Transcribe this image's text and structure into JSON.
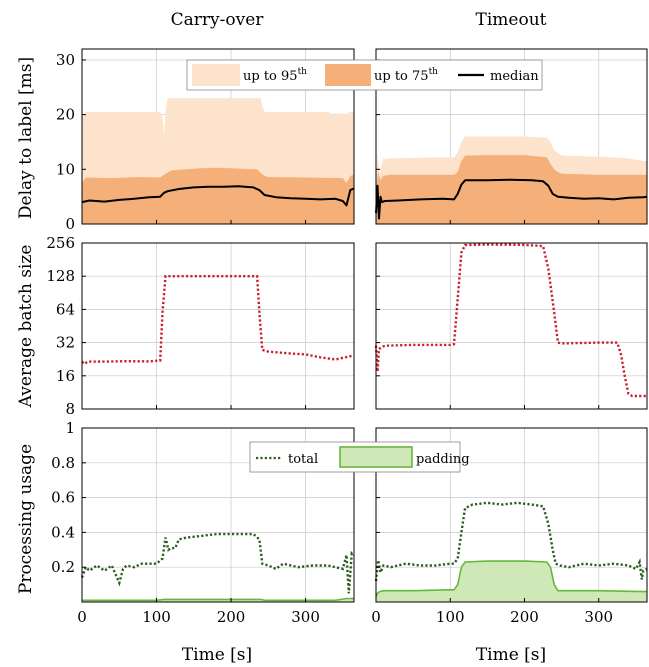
{
  "figure": {
    "col_titles": [
      "Carry-over",
      "Timeout"
    ],
    "row_ylabels": [
      "Delay to label [ms]",
      "Average batch size",
      "Processing usage"
    ],
    "xlabel": "Time [s]",
    "legend_delay": {
      "p95": "up to 95",
      "p75": "up to 75",
      "sup": "th",
      "median": "median"
    },
    "legend_usage": {
      "total": "total",
      "padding": "padding"
    }
  },
  "colors": {
    "p95": "#fde2cc",
    "p75": "#f5b07a",
    "median": "#000000",
    "batch": "#cc1f2b",
    "total": "#2b5d1e",
    "padding_fill": "#cfe8b8",
    "padding_line": "#66b83a",
    "grid": "#c8c8c8"
  },
  "chart_data": [
    {
      "type": "area",
      "panel": "delay-carry-over",
      "title": "Carry-over",
      "ylabel": "Delay to label [ms]",
      "xlim": [
        0,
        365
      ],
      "ylim": [
        0,
        32
      ],
      "xticks": [
        0,
        100,
        200,
        300
      ],
      "yticks": [
        0,
        10,
        20,
        30
      ],
      "grid": true,
      "legend": "top",
      "series": [
        {
          "name": "up to 95th",
          "kind": "area",
          "x": [
            0,
            5,
            105,
            108,
            110,
            112,
            115,
            240,
            242,
            245,
            250,
            330,
            340,
            345,
            352,
            360,
            365
          ],
          "values": [
            19.5,
            20.5,
            20.5,
            19.5,
            16.0,
            20.5,
            23.0,
            23.0,
            21.5,
            20.5,
            20.5,
            20.5,
            19.8,
            20.3,
            20.0,
            20.5,
            20.5
          ]
        },
        {
          "name": "up to 75th",
          "kind": "area",
          "x": [
            0,
            5,
            40,
            80,
            105,
            110,
            120,
            140,
            160,
            180,
            200,
            235,
            240,
            245,
            250,
            300,
            350,
            355,
            360,
            365
          ],
          "values": [
            7.5,
            8.5,
            8.4,
            8.6,
            8.5,
            9.0,
            9.8,
            10.0,
            10.2,
            10.3,
            10.2,
            10.0,
            9.3,
            8.8,
            8.6,
            8.5,
            8.4,
            7.5,
            8.8,
            9.0
          ]
        },
        {
          "name": "median",
          "kind": "line",
          "x": [
            0,
            10,
            30,
            50,
            70,
            90,
            105,
            110,
            115,
            130,
            150,
            170,
            190,
            210,
            230,
            238,
            245,
            260,
            280,
            300,
            320,
            340,
            350,
            355,
            360,
            365
          ],
          "values": [
            4.0,
            4.3,
            4.1,
            4.4,
            4.6,
            4.9,
            5.0,
            5.7,
            6.0,
            6.4,
            6.7,
            6.8,
            6.8,
            6.9,
            6.7,
            6.2,
            5.3,
            4.9,
            4.7,
            4.6,
            4.5,
            4.6,
            4.2,
            3.4,
            6.2,
            6.5
          ]
        }
      ]
    },
    {
      "type": "area",
      "panel": "delay-timeout",
      "title": "Timeout",
      "xlim": [
        0,
        365
      ],
      "ylim": [
        0,
        32
      ],
      "xticks": [
        0,
        100,
        200,
        300
      ],
      "yticks": [
        0,
        10,
        20,
        30
      ],
      "grid": true,
      "series": [
        {
          "name": "up to 95th",
          "kind": "area",
          "x": [
            0,
            2,
            5,
            8,
            10,
            12,
            15,
            105,
            110,
            115,
            120,
            200,
            230,
            235,
            240,
            245,
            250,
            300,
            340,
            360,
            365
          ],
          "values": [
            6.0,
            13.0,
            9.0,
            11.0,
            12.0,
            11.8,
            12.0,
            12.2,
            13.0,
            15.0,
            16.0,
            16.0,
            15.8,
            15.0,
            13.5,
            13.0,
            12.5,
            12.3,
            12.0,
            11.5,
            11.5
          ]
        },
        {
          "name": "up to 75th",
          "kind": "area",
          "x": [
            0,
            3,
            6,
            10,
            20,
            105,
            110,
            115,
            120,
            150,
            200,
            230,
            235,
            240,
            245,
            250,
            300,
            360,
            365
          ],
          "values": [
            6.0,
            9.5,
            8.0,
            8.8,
            9.0,
            9.0,
            9.5,
            11.5,
            12.5,
            12.6,
            12.6,
            12.2,
            11.0,
            10.0,
            9.5,
            9.2,
            9.0,
            9.0,
            9.0
          ]
        },
        {
          "name": "median",
          "kind": "line",
          "x": [
            0,
            2,
            4,
            6,
            8,
            12,
            30,
            60,
            90,
            105,
            110,
            115,
            120,
            150,
            180,
            210,
            225,
            232,
            238,
            245,
            260,
            280,
            300,
            320,
            340,
            360,
            365
          ],
          "values": [
            2.0,
            7.0,
            1.0,
            5.0,
            4.0,
            4.2,
            4.3,
            4.5,
            4.6,
            4.5,
            5.5,
            7.2,
            8.0,
            8.0,
            8.1,
            8.0,
            7.8,
            7.0,
            5.5,
            5.0,
            4.8,
            4.6,
            4.7,
            4.5,
            4.8,
            4.9,
            5.0
          ]
        }
      ]
    },
    {
      "type": "line",
      "panel": "batch-carry-over",
      "ylabel": "Average batch size",
      "xlim": [
        0,
        365
      ],
      "ylim": [
        8,
        256
      ],
      "log_scale_y": true,
      "xticks": [
        0,
        100,
        200,
        300
      ],
      "yticks": [
        8,
        16,
        32,
        64,
        128,
        256
      ],
      "grid": true,
      "series": [
        {
          "kind": "dotted",
          "x": [
            0,
            3,
            8,
            30,
            60,
            90,
            105,
            108,
            112,
            150,
            200,
            235,
            238,
            242,
            250,
            280,
            300,
            320,
            340,
            365
          ],
          "values": [
            21.5,
            20.5,
            21.5,
            21.5,
            21.7,
            21.6,
            22.0,
            60.0,
            128.0,
            128.0,
            128.0,
            128.0,
            60.0,
            27.5,
            26.5,
            25.5,
            25.0,
            23.5,
            22.5,
            24.5
          ]
        }
      ]
    },
    {
      "type": "line",
      "panel": "batch-timeout",
      "xlim": [
        0,
        365
      ],
      "ylim": [
        8,
        256
      ],
      "log_scale_y": true,
      "xticks": [
        0,
        100,
        200,
        300
      ],
      "yticks": [
        8,
        16,
        32,
        64,
        128,
        256
      ],
      "grid": true,
      "series": [
        {
          "kind": "dotted",
          "x": [
            0,
            2,
            4,
            7,
            12,
            50,
            100,
            105,
            110,
            115,
            120,
            150,
            200,
            225,
            232,
            240,
            245,
            250,
            300,
            325,
            330,
            335,
            340,
            345,
            365
          ],
          "values": [
            30.0,
            17.5,
            28.0,
            29.0,
            30.0,
            30.5,
            30.5,
            31.0,
            80.0,
            210.0,
            245.0,
            248.0,
            246.0,
            240.0,
            150.0,
            60.0,
            32.0,
            31.5,
            32.0,
            32.0,
            25.0,
            16.0,
            11.0,
            10.5,
            10.5
          ]
        }
      ]
    },
    {
      "type": "area",
      "panel": "usage-carry-over",
      "ylabel": "Processing usage",
      "xlabel": "Time [s]",
      "xlim": [
        0,
        365
      ],
      "ylim": [
        0,
        1
      ],
      "xticks": [
        0,
        100,
        200,
        300
      ],
      "yticks": [
        0.2,
        0.4,
        0.6,
        0.8,
        1
      ],
      "grid": true,
      "legend": "top",
      "series": [
        {
          "name": "total",
          "kind": "dotted",
          "x": [
            0,
            5,
            10,
            20,
            30,
            40,
            45,
            50,
            55,
            60,
            70,
            80,
            100,
            108,
            112,
            116,
            120,
            125,
            130,
            140,
            160,
            180,
            200,
            215,
            230,
            238,
            242,
            250,
            260,
            270,
            290,
            310,
            330,
            350,
            355,
            358,
            362,
            365
          ],
          "values": [
            0.14,
            0.2,
            0.18,
            0.21,
            0.18,
            0.21,
            0.16,
            0.11,
            0.19,
            0.21,
            0.2,
            0.22,
            0.22,
            0.25,
            0.37,
            0.3,
            0.31,
            0.31,
            0.36,
            0.37,
            0.38,
            0.39,
            0.39,
            0.39,
            0.39,
            0.36,
            0.22,
            0.21,
            0.19,
            0.22,
            0.2,
            0.21,
            0.21,
            0.19,
            0.27,
            0.05,
            0.28,
            0.27
          ]
        },
        {
          "name": "padding",
          "kind": "area",
          "x": [
            0,
            100,
            110,
            240,
            245,
            340,
            355,
            365
          ],
          "values": [
            0.01,
            0.01,
            0.015,
            0.015,
            0.01,
            0.01,
            0.02,
            0.02
          ]
        }
      ]
    },
    {
      "type": "area",
      "panel": "usage-timeout",
      "xlabel": "Time [s]",
      "xlim": [
        0,
        365
      ],
      "ylim": [
        0,
        1
      ],
      "xticks": [
        0,
        100,
        200,
        300
      ],
      "yticks": [
        0.2,
        0.4,
        0.6,
        0.8,
        1
      ],
      "grid": true,
      "series": [
        {
          "name": "total",
          "kind": "dotted",
          "x": [
            0,
            3,
            6,
            10,
            20,
            40,
            60,
            80,
            100,
            105,
            110,
            115,
            120,
            130,
            150,
            170,
            190,
            210,
            225,
            232,
            238,
            242,
            248,
            260,
            280,
            300,
            320,
            340,
            350,
            355,
            358,
            360,
            365
          ],
          "values": [
            0.12,
            0.24,
            0.17,
            0.21,
            0.2,
            0.22,
            0.21,
            0.21,
            0.22,
            0.22,
            0.25,
            0.4,
            0.54,
            0.56,
            0.57,
            0.56,
            0.57,
            0.56,
            0.55,
            0.45,
            0.3,
            0.22,
            0.21,
            0.2,
            0.22,
            0.21,
            0.22,
            0.21,
            0.19,
            0.23,
            0.13,
            0.18,
            0.19
          ]
        },
        {
          "name": "padding",
          "kind": "area",
          "x": [
            0,
            2,
            5,
            10,
            50,
            100,
            105,
            110,
            115,
            120,
            150,
            200,
            230,
            235,
            240,
            245,
            300,
            360,
            365
          ],
          "values": [
            0.03,
            0.05,
            0.06,
            0.065,
            0.065,
            0.07,
            0.07,
            0.1,
            0.2,
            0.23,
            0.235,
            0.235,
            0.23,
            0.2,
            0.1,
            0.065,
            0.065,
            0.06,
            0.06
          ]
        }
      ]
    }
  ]
}
